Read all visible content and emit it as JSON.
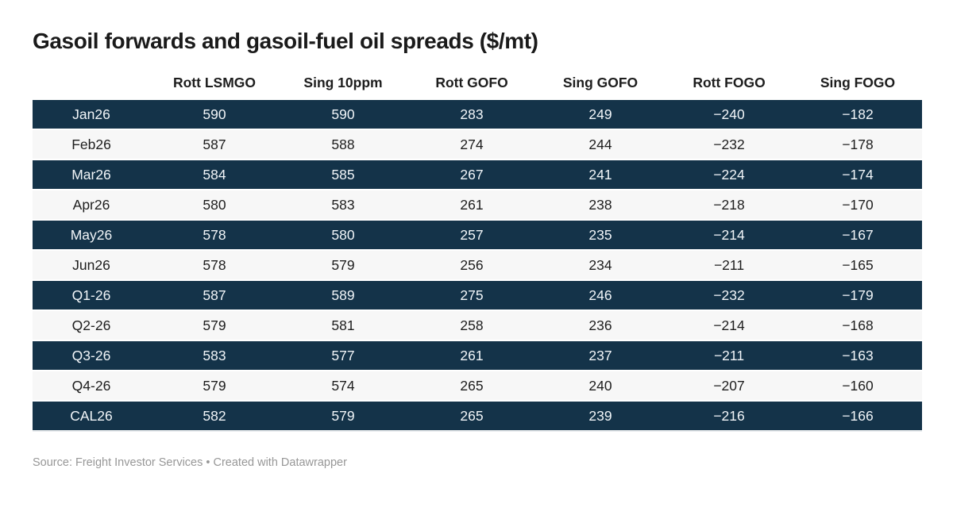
{
  "chart_data": {
    "type": "table",
    "title": "Gasoil forwards and gasoil-fuel oil spreads ($/mt)",
    "columns": [
      "",
      "Rott LSMGO",
      "Sing 10ppm",
      "Rott GOFO",
      "Sing GOFO",
      "Rott FOGO",
      "Sing FOGO"
    ],
    "rows": [
      {
        "label": "Jan26",
        "values": [
          "590",
          "590",
          "283",
          "249",
          "−240",
          "−182"
        ]
      },
      {
        "label": "Feb26",
        "values": [
          "587",
          "588",
          "274",
          "244",
          "−232",
          "−178"
        ]
      },
      {
        "label": "Mar26",
        "values": [
          "584",
          "585",
          "267",
          "241",
          "−224",
          "−174"
        ]
      },
      {
        "label": "Apr26",
        "values": [
          "580",
          "583",
          "261",
          "238",
          "−218",
          "−170"
        ]
      },
      {
        "label": "May26",
        "values": [
          "578",
          "580",
          "257",
          "235",
          "−214",
          "−167"
        ]
      },
      {
        "label": "Jun26",
        "values": [
          "578",
          "579",
          "256",
          "234",
          "−211",
          "−165"
        ]
      },
      {
        "label": "Q1-26",
        "values": [
          "587",
          "589",
          "275",
          "246",
          "−232",
          "−179"
        ]
      },
      {
        "label": "Q2-26",
        "values": [
          "579",
          "581",
          "258",
          "236",
          "−214",
          "−168"
        ]
      },
      {
        "label": "Q3-26",
        "values": [
          "583",
          "577",
          "261",
          "237",
          "−211",
          "−163"
        ]
      },
      {
        "label": "Q4-26",
        "values": [
          "579",
          "574",
          "265",
          "240",
          "−207",
          "−160"
        ]
      },
      {
        "label": "CAL26",
        "values": [
          "582",
          "579",
          "265",
          "239",
          "−216",
          "−166"
        ]
      }
    ],
    "layout": {
      "row_striping": "alternating starting dark",
      "alignment": "center",
      "grid": "off"
    }
  },
  "footer": {
    "text": "Source: Freight Investor Services • Created with Datawrapper"
  },
  "colors": {
    "row_dark_bg": "#143349",
    "row_light_bg": "#f7f7f7",
    "row_dark_text": "#f2f6f9",
    "row_light_text": "#1d1d1d",
    "title_text": "#1a1a1a",
    "footer_text": "#979797",
    "page_bg": "#ffffff"
  }
}
